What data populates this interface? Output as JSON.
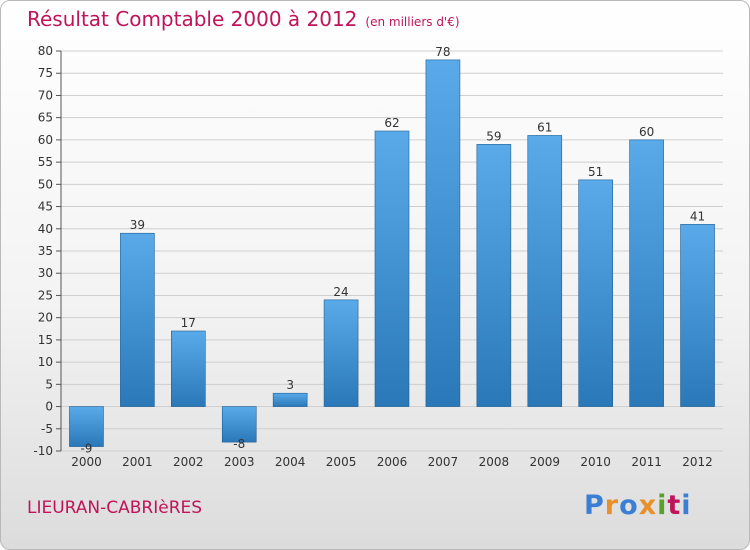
{
  "header": {
    "title": "Résultat Comptable 2000 à 2012",
    "subtitle": "(en milliers d'€)"
  },
  "footer": {
    "commune": "LIEURAN-CABRIèRES",
    "logo": {
      "text": "Proxiti",
      "letter_colors": [
        "#3a7fd5",
        "#e8902a",
        "#3a7fd5",
        "#e8902a",
        "#5aa02c",
        "#c0145a",
        "#3a7fd5"
      ]
    }
  },
  "colors": {
    "bar_light": "#5aaaea",
    "bar_dark": "#2a78b8",
    "title": "#c0145a",
    "grid": "#cfcfcf"
  },
  "chart_data": {
    "type": "bar",
    "title": "Résultat Comptable 2000 à 2012",
    "subtitle": "(en milliers d'€)",
    "categories": [
      "2000",
      "2001",
      "2002",
      "2003",
      "2004",
      "2005",
      "2006",
      "2007",
      "2008",
      "2009",
      "2010",
      "2011",
      "2012"
    ],
    "values": [
      -9,
      39,
      17,
      -8,
      3,
      24,
      62,
      78,
      59,
      61,
      51,
      60,
      41
    ],
    "ylim": [
      -10,
      80
    ],
    "yticks": [
      -10,
      -5,
      0,
      5,
      10,
      15,
      20,
      25,
      30,
      35,
      40,
      45,
      50,
      55,
      60,
      65,
      70,
      75,
      80
    ],
    "grid": true,
    "legend": "none"
  }
}
